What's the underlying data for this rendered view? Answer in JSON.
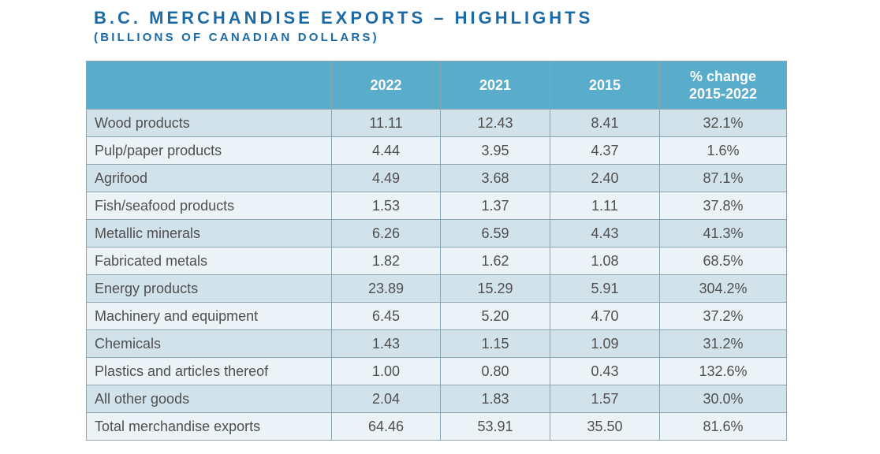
{
  "title": "B.C. MERCHANDISE EXPORTS – HIGHLIGHTS",
  "subtitle": "(BILLIONS OF CANADIAN DOLLARS)",
  "chart_data": {
    "type": "table",
    "title": "B.C. MERCHANDISE EXPORTS – HIGHLIGHTS",
    "subtitle": "(BILLIONS OF CANADIAN DOLLARS)",
    "columns": [
      "",
      "2022",
      "2021",
      "2015",
      "% change 2015-2022"
    ],
    "column_header_lines": {
      "pct": [
        "% change",
        "2015-2022"
      ]
    },
    "rows": [
      {
        "label": "Wood products",
        "v2022": "11.11",
        "v2021": "12.43",
        "v2015": "8.41",
        "pct": "32.1%"
      },
      {
        "label": "Pulp/paper products",
        "v2022": "4.44",
        "v2021": "3.95",
        "v2015": "4.37",
        "pct": "1.6%"
      },
      {
        "label": "Agrifood",
        "v2022": "4.49",
        "v2021": "3.68",
        "v2015": "2.40",
        "pct": "87.1%"
      },
      {
        "label": "Fish/seafood products",
        "v2022": "1.53",
        "v2021": "1.37",
        "v2015": "1.11",
        "pct": "37.8%"
      },
      {
        "label": "Metallic minerals",
        "v2022": "6.26",
        "v2021": "6.59",
        "v2015": "4.43",
        "pct": "41.3%"
      },
      {
        "label": "Fabricated metals",
        "v2022": "1.82",
        "v2021": "1.62",
        "v2015": "1.08",
        "pct": "68.5%"
      },
      {
        "label": "Energy products",
        "v2022": "23.89",
        "v2021": "15.29",
        "v2015": "5.91",
        "pct": "304.2%"
      },
      {
        "label": "Machinery and equipment",
        "v2022": "6.45",
        "v2021": "5.20",
        "v2015": "4.70",
        "pct": "37.2%"
      },
      {
        "label": "Chemicals",
        "v2022": "1.43",
        "v2021": "1.15",
        "v2015": "1.09",
        "pct": "31.2%"
      },
      {
        "label": "Plastics and articles thereof",
        "v2022": "1.00",
        "v2021": "0.80",
        "v2015": "0.43",
        "pct": "132.6%"
      },
      {
        "label": "All other goods",
        "v2022": "2.04",
        "v2021": "1.83",
        "v2015": "1.57",
        "pct": "30.0%"
      },
      {
        "label": "Total merchandise exports",
        "v2022": "64.46",
        "v2021": "53.91",
        "v2015": "35.50",
        "pct": "81.6%"
      }
    ]
  },
  "colors": {
    "title": "#1b6aa6",
    "header_bg": "#5aaccb",
    "row_dark": "#d2e2ea",
    "row_light": "#ebf3f6",
    "border": "#8aa6b5",
    "text": "#4f4f4f"
  }
}
